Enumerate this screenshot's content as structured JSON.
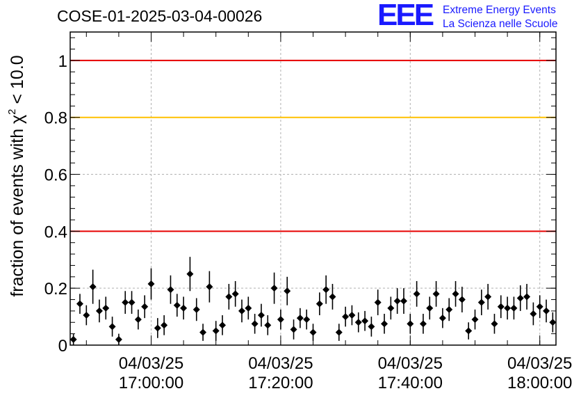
{
  "title": "COSE-01-2025-03-04-00026",
  "logo": {
    "mark": "EEE",
    "line1": "Extreme Energy Events",
    "line2": "La Scienza nelle Scuole"
  },
  "colors": {
    "red_line": "#e60000",
    "orange_line": "#ffc000",
    "points": "#000000",
    "grid": "#b0b0b0",
    "logo": "#1a1aff"
  },
  "chart_data": {
    "type": "scatter",
    "title": "COSE-01-2025-03-04-00026",
    "ylabel": "fraction of events with χ² < 10.0",
    "ylabel_main": "fraction of events with χ",
    "ylabel_sup": "2",
    "ylabel_tail": " < 10.0",
    "xlabel": "",
    "ylim": [
      0,
      1.1
    ],
    "xlim": [
      "2025-03-04 16:47:30",
      "2025-03-04 18:02:30"
    ],
    "grid": true,
    "yticks": [
      {
        "value": 0,
        "label": "0"
      },
      {
        "value": 0.2,
        "label": "0.2"
      },
      {
        "value": 0.4,
        "label": "0.4"
      },
      {
        "value": 0.6,
        "label": "0.6"
      },
      {
        "value": 0.8,
        "label": "0.8"
      },
      {
        "value": 1,
        "label": "1"
      }
    ],
    "xticks": [
      {
        "time": "2025-03-04 17:00:00",
        "date": "04/03/25",
        "clock": "17:00:00"
      },
      {
        "time": "2025-03-04 17:20:00",
        "date": "04/03/25",
        "clock": "17:20:00"
      },
      {
        "time": "2025-03-04 17:40:00",
        "date": "04/03/25",
        "clock": "17:40:00"
      },
      {
        "time": "2025-03-04 18:00:00",
        "date": "04/03/25",
        "clock": "18:00:00"
      }
    ],
    "reference_lines": [
      {
        "y": 1.0,
        "color": "#e60000"
      },
      {
        "y": 0.8,
        "color": "#ffc000"
      },
      {
        "y": 0.4,
        "color": "#e60000"
      }
    ],
    "series": [
      {
        "x": [
          "2025-03-04 16:48:00",
          "2025-03-04 16:49:00",
          "2025-03-04 16:50:00",
          "2025-03-04 16:51:00",
          "2025-03-04 16:52:00",
          "2025-03-04 16:53:00",
          "2025-03-04 16:54:00",
          "2025-03-04 16:55:00",
          "2025-03-04 16:56:00",
          "2025-03-04 16:57:00",
          "2025-03-04 16:58:00",
          "2025-03-04 16:59:00",
          "2025-03-04 17:00:00",
          "2025-03-04 17:01:00",
          "2025-03-04 17:02:00",
          "2025-03-04 17:03:00",
          "2025-03-04 17:04:00",
          "2025-03-04 17:05:00",
          "2025-03-04 17:06:00",
          "2025-03-04 17:07:00",
          "2025-03-04 17:08:00",
          "2025-03-04 17:09:00",
          "2025-03-04 17:10:00",
          "2025-03-04 17:11:00",
          "2025-03-04 17:12:00",
          "2025-03-04 17:13:00",
          "2025-03-04 17:14:00",
          "2025-03-04 17:15:00",
          "2025-03-04 17:16:00",
          "2025-03-04 17:17:00",
          "2025-03-04 17:18:00",
          "2025-03-04 17:19:00",
          "2025-03-04 17:20:00",
          "2025-03-04 17:21:00",
          "2025-03-04 17:22:00",
          "2025-03-04 17:23:00",
          "2025-03-04 17:24:00",
          "2025-03-04 17:25:00",
          "2025-03-04 17:26:00",
          "2025-03-04 17:27:00",
          "2025-03-04 17:28:00",
          "2025-03-04 17:29:00",
          "2025-03-04 17:30:00",
          "2025-03-04 17:31:00",
          "2025-03-04 17:32:00",
          "2025-03-04 17:33:00",
          "2025-03-04 17:34:00",
          "2025-03-04 17:35:00",
          "2025-03-04 17:36:00",
          "2025-03-04 17:37:00",
          "2025-03-04 17:38:00",
          "2025-03-04 17:39:00",
          "2025-03-04 17:40:00",
          "2025-03-04 17:41:00",
          "2025-03-04 17:42:00",
          "2025-03-04 17:43:00",
          "2025-03-04 17:44:00",
          "2025-03-04 17:45:00",
          "2025-03-04 17:46:00",
          "2025-03-04 17:47:00",
          "2025-03-04 17:48:00",
          "2025-03-04 17:49:00",
          "2025-03-04 17:50:00",
          "2025-03-04 17:51:00",
          "2025-03-04 17:52:00",
          "2025-03-04 17:53:00",
          "2025-03-04 17:54:00",
          "2025-03-04 17:55:00",
          "2025-03-04 17:56:00",
          "2025-03-04 17:57:00",
          "2025-03-04 17:58:00",
          "2025-03-04 17:59:00",
          "2025-03-04 18:00:00",
          "2025-03-04 18:01:00",
          "2025-03-04 18:02:00"
        ],
        "y": [
          0.02,
          0.145,
          0.105,
          0.205,
          0.12,
          0.13,
          0.065,
          0.02,
          0.15,
          0.15,
          0.09,
          0.135,
          0.215,
          0.06,
          0.07,
          0.195,
          0.14,
          0.13,
          0.25,
          0.125,
          0.045,
          0.205,
          0.05,
          0.07,
          0.17,
          0.18,
          0.12,
          0.13,
          0.075,
          0.105,
          0.07,
          0.2,
          0.09,
          0.19,
          0.055,
          0.095,
          0.09,
          0.045,
          0.145,
          0.195,
          0.17,
          0.045,
          0.1,
          0.105,
          0.08,
          0.085,
          0.065,
          0.15,
          0.075,
          0.13,
          0.155,
          0.155,
          0.075,
          0.18,
          0.075,
          0.13,
          0.18,
          0.095,
          0.125,
          0.18,
          0.16,
          0.05,
          0.09,
          0.15,
          0.17,
          0.075,
          0.135,
          0.13,
          0.13,
          0.165,
          0.17,
          0.11,
          0.135,
          0.12,
          0.08
        ],
        "err": [
          0.02,
          0.035,
          0.035,
          0.06,
          0.04,
          0.04,
          0.035,
          0.02,
          0.04,
          0.04,
          0.035,
          0.04,
          0.055,
          0.035,
          0.035,
          0.05,
          0.04,
          0.04,
          0.06,
          0.04,
          0.03,
          0.055,
          0.035,
          0.035,
          0.045,
          0.045,
          0.04,
          0.04,
          0.035,
          0.04,
          0.035,
          0.055,
          0.035,
          0.05,
          0.035,
          0.035,
          0.035,
          0.03,
          0.04,
          0.05,
          0.045,
          0.03,
          0.035,
          0.035,
          0.035,
          0.035,
          0.035,
          0.045,
          0.035,
          0.04,
          0.045,
          0.045,
          0.035,
          0.045,
          0.035,
          0.04,
          0.045,
          0.035,
          0.04,
          0.045,
          0.045,
          0.03,
          0.035,
          0.045,
          0.045,
          0.035,
          0.04,
          0.04,
          0.04,
          0.045,
          0.045,
          0.04,
          0.04,
          0.04,
          0.035
        ]
      }
    ]
  }
}
